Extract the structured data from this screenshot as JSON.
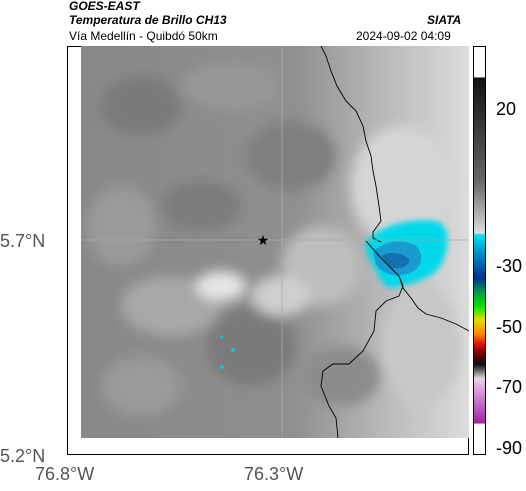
{
  "header": {
    "source": "GOES-EAST",
    "product": "Temperatura de Brillo CH13",
    "region": "Vía Medellín - Quibdó 50km",
    "agency": "SIATA",
    "datetime": "2024-09-02 04:09"
  },
  "axes": {
    "lat_ticks": [
      "5.7°N",
      "5.2°N"
    ],
    "lon_ticks": [
      "76.8°W",
      "76.3°W"
    ]
  },
  "colorbar": {
    "ticks": [
      "20",
      "-30",
      "-50",
      "-70",
      "-90"
    ]
  },
  "map": {
    "marker_icon": "star-icon",
    "colors": {
      "cold_cloud": "#00d8ea",
      "cold_core": "#1a88c8",
      "background_gray": "#8a8a8a",
      "border_line": "#000000"
    }
  }
}
